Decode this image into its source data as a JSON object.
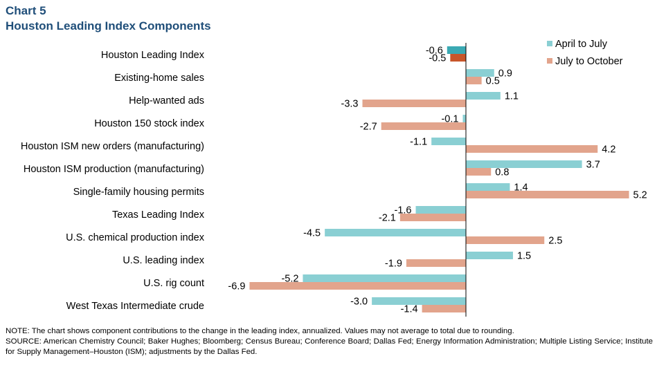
{
  "title": {
    "line1": "Chart 5",
    "line2": "Houston Leading Index Components"
  },
  "chart_data": {
    "type": "bar",
    "orientation": "horizontal",
    "categories": [
      "Houston Leading Index",
      "Existing-home sales",
      "Help-wanted ads",
      "Houston 150 stock index",
      "Houston ISM new orders (manufacturing)",
      "Houston ISM production (manufacturing)",
      "Single-family housing permits",
      "Texas Leading Index",
      "U.S. chemical production index",
      "U.S. leading index",
      "U.S. rig count",
      "West Texas Intermediate crude"
    ],
    "series": [
      {
        "name": "April to July",
        "values": [
          -0.6,
          0.9,
          1.1,
          -0.1,
          -1.1,
          3.7,
          1.4,
          -1.6,
          -4.5,
          1.5,
          -5.2,
          -3.0
        ],
        "value_labels": [
          "-0.6",
          "0.9",
          "1.1",
          "-0.1",
          "-1.1",
          "3.7",
          "1.4",
          "-1.6",
          "-4.5",
          "1.5",
          "-5.2",
          "-3.0"
        ]
      },
      {
        "name": "July to October",
        "values": [
          -0.5,
          0.5,
          -3.3,
          -2.7,
          4.2,
          0.8,
          5.2,
          -2.1,
          2.5,
          -1.9,
          -6.9,
          -1.4
        ],
        "value_labels": [
          "-0.5",
          "0.5",
          "-3.3",
          "-2.7",
          "4.2",
          "0.8",
          "5.2",
          "-2.1",
          "2.5",
          "-1.9",
          "-6.9",
          "-1.4"
        ]
      }
    ],
    "colors": {
      "april_to_july": "#8acfd3",
      "july_to_october": "#e2a48c",
      "hli_april_to_july": "#3aa9b3",
      "hli_july_to_october": "#c8562a"
    },
    "xlim": [
      -7,
      6
    ],
    "legend_position": "top-right",
    "grid": false
  },
  "notes": {
    "note": "NOTE: The chart shows component contributions to the change in the leading index, annualized. Values may not average  to total due to rounding.",
    "source": "SOURCE: American Chemistry Council; Baker Hughes; Bloomberg; Census Bureau; Conference  Board; Dallas Fed; Energy Information  Administration; Multiple Listing Service; Institute for Supply Management–Houston  (ISM); adjustments by the Dallas Fed."
  }
}
